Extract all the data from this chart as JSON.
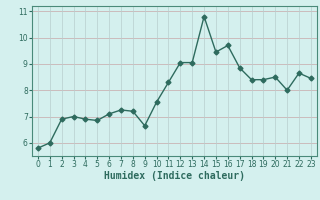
{
  "x": [
    0,
    1,
    2,
    3,
    4,
    5,
    6,
    7,
    8,
    9,
    10,
    11,
    12,
    13,
    14,
    15,
    16,
    17,
    18,
    19,
    20,
    21,
    22,
    23
  ],
  "y": [
    5.8,
    6.0,
    6.9,
    7.0,
    6.9,
    6.85,
    7.1,
    7.25,
    7.2,
    6.65,
    7.55,
    8.3,
    9.05,
    9.05,
    10.8,
    9.45,
    9.7,
    8.85,
    8.4,
    8.4,
    8.5,
    8.0,
    8.65,
    8.45
  ],
  "line_color": "#2e6b5e",
  "marker": "D",
  "markersize": 2.5,
  "linewidth": 1.0,
  "bg_color": "#d4f0ee",
  "hgrid_color": "#c8a8a8",
  "vgrid_color": "#b8cece",
  "xlabel": "Humidex (Indice chaleur)",
  "xlabel_fontsize": 7,
  "ylim": [
    5.5,
    11.2
  ],
  "xlim": [
    -0.5,
    23.5
  ],
  "yticks": [
    6,
    7,
    8,
    9,
    10,
    11
  ],
  "xticks": [
    0,
    1,
    2,
    3,
    4,
    5,
    6,
    7,
    8,
    9,
    10,
    11,
    12,
    13,
    14,
    15,
    16,
    17,
    18,
    19,
    20,
    21,
    22,
    23
  ],
  "tick_fontsize": 5.5,
  "spine_color": "#4a8a7a"
}
